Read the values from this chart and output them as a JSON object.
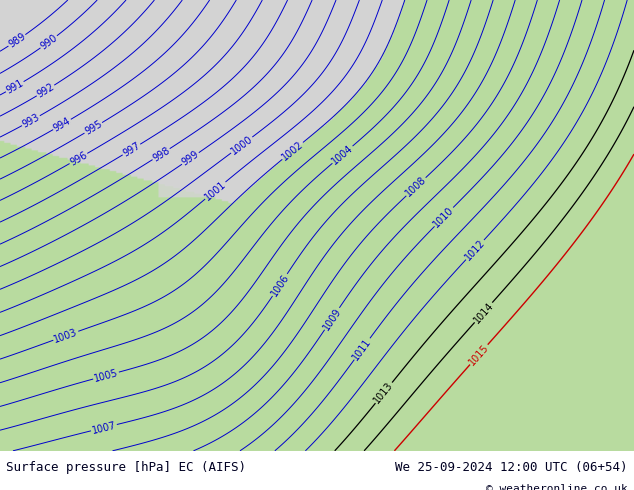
{
  "title_left": "Surface pressure [hPa] EC (AIFS)",
  "title_right": "We 25-09-2024 12:00 UTC (06+54)",
  "copyright": "© weatheronline.co.uk",
  "background_color": "#ffffff",
  "contour_color_blue": "#0000cc",
  "contour_color_black": "#000000",
  "contour_color_red": "#cc0000",
  "land_color_hex": "#b8dba0",
  "sea_color_hex": "#d4d4d4",
  "font_size_footer": 9,
  "font_size_labels": 7,
  "figsize": [
    6.34,
    4.9
  ],
  "dpi": 100,
  "pressure_levels_blue": [
    989,
    990,
    991,
    992,
    993,
    994,
    995,
    996,
    997,
    998,
    999,
    1000,
    1001,
    1002,
    1003,
    1004,
    1005,
    1006,
    1007,
    1008,
    1009,
    1010,
    1011,
    1012
  ],
  "pressure_levels_black": [
    1013,
    1014
  ],
  "pressure_levels_red": [
    1015
  ],
  "contour_linewidth": 0.7
}
